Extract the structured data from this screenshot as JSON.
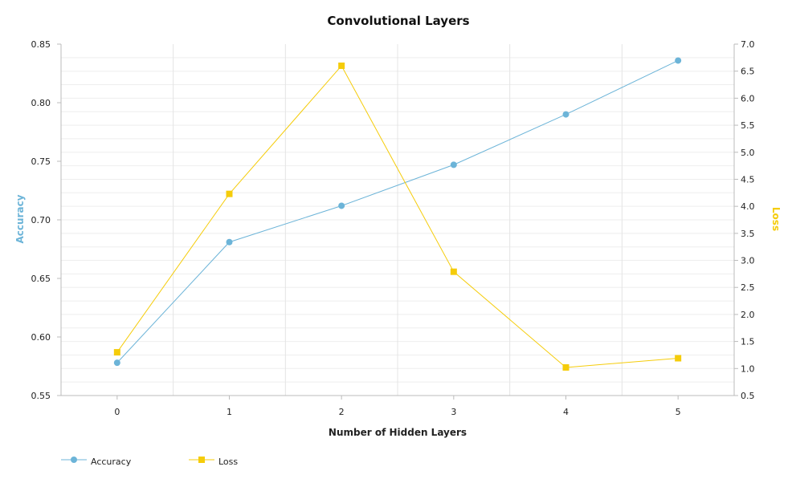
{
  "chart_data": {
    "type": "line",
    "title": "Convolutional Layers",
    "xlabel": "Number of Hidden Layers",
    "categories": [
      "0",
      "1",
      "2",
      "3",
      "4",
      "5"
    ],
    "y_left": {
      "label": "Accuracy",
      "range": [
        0.55,
        0.85
      ],
      "ticks": [
        "0.55",
        "0.60",
        "0.65",
        "0.70",
        "0.75",
        "0.80",
        "0.85"
      ],
      "color": "#6cb4d8"
    },
    "y_right": {
      "label": "Loss",
      "range": [
        0.5,
        7.0
      ],
      "ticks": [
        "0.5",
        "1.0",
        "1.5",
        "2.0",
        "2.5",
        "3.0",
        "3.5",
        "4.0",
        "4.5",
        "5.0",
        "5.5",
        "6.0",
        "6.5",
        "7.0"
      ],
      "color": "#f5cc0a"
    },
    "series": [
      {
        "name": "Accuracy",
        "axis": "left",
        "marker": "circle",
        "color": "#6cb4d8",
        "values": [
          0.578,
          0.681,
          0.712,
          0.747,
          0.79,
          0.836
        ]
      },
      {
        "name": "Loss",
        "axis": "right",
        "marker": "square",
        "color": "#f5cc0a",
        "values": [
          1.3,
          4.23,
          6.6,
          2.79,
          1.02,
          1.19
        ]
      }
    ],
    "grid": true,
    "legend_position": "bottom-left"
  }
}
